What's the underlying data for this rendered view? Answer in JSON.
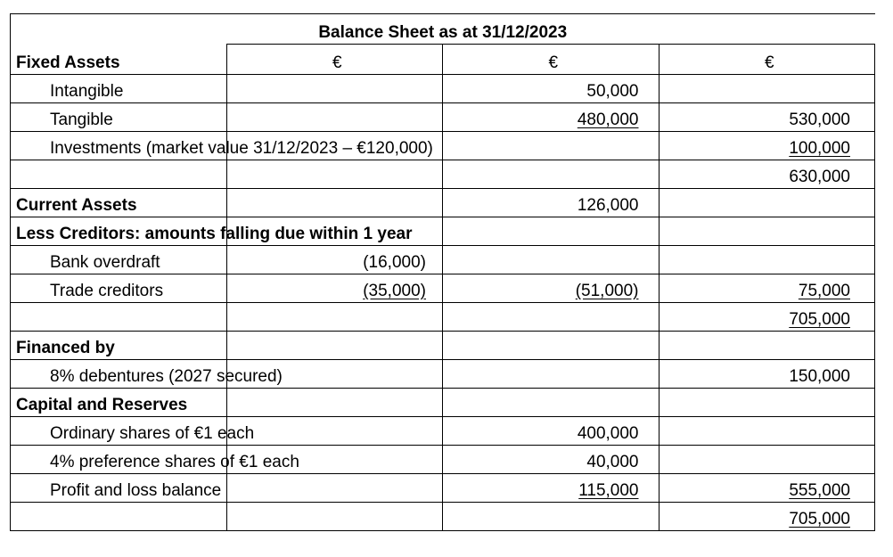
{
  "title": "Balance Sheet as at 31/12/2023",
  "currency": "€",
  "rows": [
    {
      "label": "Fixed Assets",
      "bold": true,
      "indent": false,
      "c1": "",
      "c2": "",
      "c3": ""
    },
    {
      "label": "Intangible",
      "bold": false,
      "indent": true,
      "c1": "",
      "c2": "50,000",
      "c3": ""
    },
    {
      "label": "Tangible",
      "bold": false,
      "indent": true,
      "c1": "",
      "c2": "480,000",
      "c3": "530,000"
    },
    {
      "label": "Investments (market value 31/12/2023 – €120,000)",
      "bold": false,
      "indent": true,
      "c1": "",
      "c2": "",
      "c3": "100,000"
    },
    {
      "label": "",
      "bold": false,
      "indent": false,
      "c1": "",
      "c2": "",
      "c3": "630,000"
    },
    {
      "label": "Current Assets",
      "bold": true,
      "indent": false,
      "c1": "",
      "c2": "126,000",
      "c3": ""
    },
    {
      "label": "Less Creditors: amounts falling due within 1 year",
      "bold": true,
      "indent": false,
      "c1": "",
      "c2": "",
      "c3": ""
    },
    {
      "label": "Bank overdraft",
      "bold": false,
      "indent": true,
      "c1": "(16,000)",
      "c2": "",
      "c3": ""
    },
    {
      "label": "Trade creditors",
      "bold": false,
      "indent": true,
      "c1": "(35,000)",
      "c2": "(51,000)",
      "c3": "75,000"
    },
    {
      "label": "",
      "bold": false,
      "indent": false,
      "c1": "",
      "c2": "",
      "c3": "705,000"
    },
    {
      "label": "Financed by",
      "bold": true,
      "indent": false,
      "c1": "",
      "c2": "",
      "c3": ""
    },
    {
      "label": "8% debentures (2027 secured)",
      "bold": false,
      "indent": true,
      "c1": "",
      "c2": "",
      "c3": "150,000"
    },
    {
      "label": "Capital and Reserves",
      "bold": true,
      "indent": false,
      "c1": "",
      "c2": "",
      "c3": ""
    },
    {
      "label": "Ordinary shares of €1 each",
      "bold": false,
      "indent": true,
      "c1": "",
      "c2": "400,000",
      "c3": ""
    },
    {
      "label": "4% preference shares of €1 each",
      "bold": false,
      "indent": true,
      "c1": "",
      "c2": "40,000",
      "c3": ""
    },
    {
      "label": "Profit and loss balance",
      "bold": false,
      "indent": true,
      "c1": "",
      "c2": "115,000",
      "c3": "555,000"
    },
    {
      "label": "",
      "bold": false,
      "indent": false,
      "c1": "",
      "c2": "",
      "c3": "705,000"
    }
  ]
}
